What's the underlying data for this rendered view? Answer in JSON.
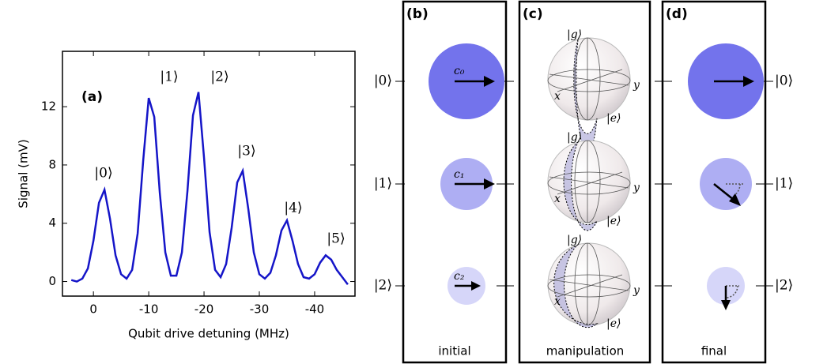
{
  "chart_data": {
    "type": "line",
    "panel_label": "(a)",
    "x_label": "Qubit drive detuning (MHz)",
    "y_label": "Signal (mV)",
    "x": [
      4,
      3,
      2,
      1,
      0,
      -1,
      -2,
      -3,
      -4,
      -5,
      -6,
      -7,
      -8,
      -9,
      -10,
      -11,
      -12,
      -13,
      -14,
      -15,
      -16,
      -17,
      -18,
      -19,
      -20,
      -21,
      -22,
      -23,
      -24,
      -25,
      -26,
      -27,
      -28,
      -29,
      -30,
      -31,
      -32,
      -33,
      -34,
      -35,
      -36,
      -37,
      -38,
      -39,
      -40,
      -41,
      -42,
      -43,
      -44,
      -45,
      -46
    ],
    "series": [
      {
        "color": "#1515c8",
        "values": [
          0.1,
          0.0,
          0.2,
          0.9,
          2.8,
          5.4,
          6.3,
          4.3,
          1.8,
          0.5,
          0.2,
          0.8,
          3.3,
          8.3,
          12.6,
          11.3,
          6.1,
          2.0,
          0.4,
          0.4,
          2.0,
          6.2,
          11.4,
          13.0,
          8.5,
          3.4,
          0.8,
          0.3,
          1.2,
          3.7,
          6.8,
          7.6,
          5.0,
          2.0,
          0.5,
          0.2,
          0.6,
          1.8,
          3.5,
          4.2,
          2.8,
          1.2,
          0.3,
          0.2,
          0.5,
          1.3,
          1.8,
          1.5,
          0.8,
          0.3,
          -0.2
        ]
      }
    ],
    "xlim": [
      5.6,
      -47.3
    ],
    "ylim": [
      -1,
      15.8
    ],
    "xticks": [
      0,
      -10,
      -20,
      -30,
      -40
    ],
    "yticks": [
      0,
      4,
      8,
      12
    ],
    "annotations": [
      "|0⟩",
      "|1⟩",
      "|2⟩",
      "|3⟩",
      "|4⟩",
      "|5⟩"
    ]
  },
  "panels": {
    "b": {
      "label": "(b)",
      "caption": "initial",
      "kets": [
        "|0⟩",
        "|1⟩",
        "|2⟩"
      ],
      "coefficients": [
        "c₀",
        "c₁",
        "c₂"
      ]
    },
    "c": {
      "label": "(c)",
      "caption": "manipulation",
      "bloch_labels": {
        "g": "|g⟩",
        "e": "|e⟩",
        "x": "x",
        "y": "y"
      }
    },
    "d": {
      "label": "(d)",
      "caption": "final",
      "kets": [
        "|0⟩",
        "|1⟩",
        "|2⟩"
      ]
    }
  }
}
